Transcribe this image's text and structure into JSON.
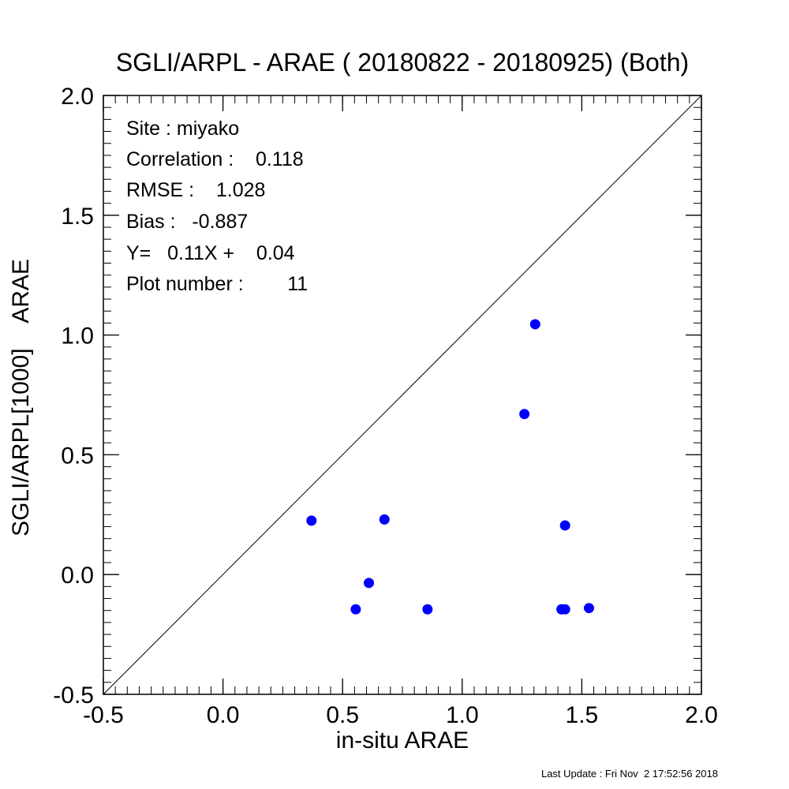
{
  "chart_data": {
    "type": "scatter",
    "title": "SGLI/ARPL - ARAE ( 20180822 - 20180925) (Both)",
    "xlabel": "in-situ ARAE",
    "ylabel": "SGLI/ARPL[1000]    ARAE",
    "xlim": [
      -0.5,
      2.0
    ],
    "ylim": [
      -0.5,
      2.0
    ],
    "xticks": [
      "-0.5",
      "0.0",
      "0.5",
      "1.0",
      "1.5",
      "2.0"
    ],
    "yticks": [
      "-0.5",
      "0.0",
      "0.5",
      "1.0",
      "1.5",
      "2.0"
    ],
    "reference_line": "1:1",
    "grid": false,
    "marker_color": "#0000ff",
    "points": [
      {
        "x": 0.37,
        "y": 0.225
      },
      {
        "x": 0.555,
        "y": -0.145
      },
      {
        "x": 0.61,
        "y": -0.035
      },
      {
        "x": 0.675,
        "y": 0.23
      },
      {
        "x": 0.855,
        "y": -0.145
      },
      {
        "x": 1.26,
        "y": 0.67
      },
      {
        "x": 1.305,
        "y": 1.045
      },
      {
        "x": 1.415,
        "y": -0.145
      },
      {
        "x": 1.43,
        "y": -0.145
      },
      {
        "x": 1.43,
        "y": 0.205
      },
      {
        "x": 1.53,
        "y": -0.14
      }
    ],
    "annotations": [
      "Site : miyako",
      "Correlation :    0.118",
      "RMSE :    1.028",
      "Bias :   -0.887",
      "Y=   0.11X +    0.04",
      "Plot number :        11"
    ]
  },
  "footer": {
    "last_update": "Last Update : Fri Nov  2 17:52:56 2018"
  }
}
